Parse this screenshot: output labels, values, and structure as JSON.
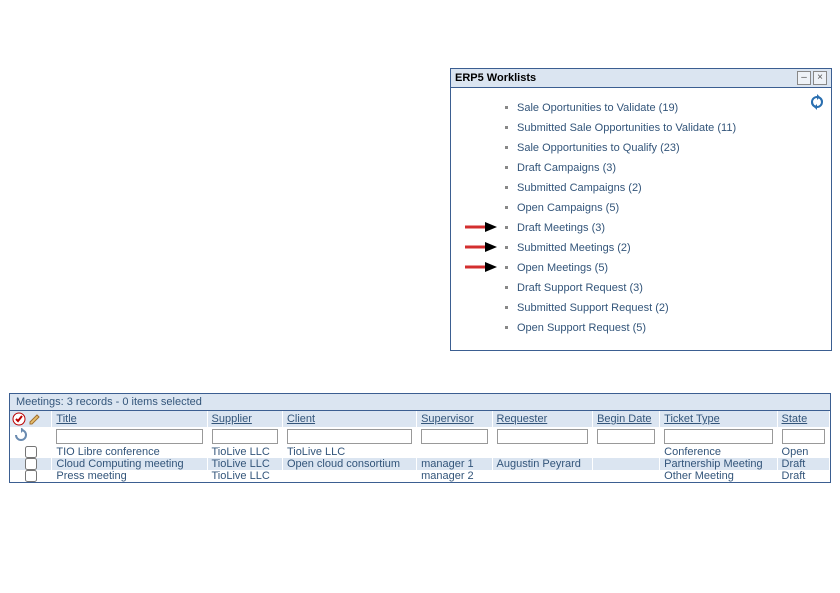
{
  "worklists": {
    "title": "ERP5 Worklists",
    "highlight_indices": [
      6,
      7,
      8
    ],
    "items": [
      {
        "label": "Sale Oportunities to Validate (19)"
      },
      {
        "label": "Submitted Sale Opportunities to Validate (11)"
      },
      {
        "label": "Sale Opportunities to Qualify (23)"
      },
      {
        "label": "Draft Campaigns (3)"
      },
      {
        "label": "Submitted Campaigns (2)"
      },
      {
        "label": "Open Campaigns (5)"
      },
      {
        "label": "Draft Meetings (3)"
      },
      {
        "label": "Submitted Meetings (2)"
      },
      {
        "label": "Open Meetings (5)"
      },
      {
        "label": "Draft Support Request (3)"
      },
      {
        "label": "Submitted Support Request (2)"
      },
      {
        "label": "Open Support Request (5)"
      }
    ]
  },
  "meetings": {
    "summary": "Meetings: 3 records - 0 items selected",
    "columns": {
      "title": "Title",
      "supplier": "Supplier",
      "client": "Client",
      "supervisor": "Supervisor",
      "requester": "Requester",
      "begin": "Begin Date",
      "ticket": "Ticket Type",
      "state": "State"
    },
    "rows": [
      {
        "title": "TIO Libre conference",
        "supplier": "TioLive LLC",
        "client": "TioLive LLC",
        "supervisor": "",
        "requester": "",
        "begin": "",
        "ticket": "Conference",
        "state": "Open"
      },
      {
        "title": "Cloud Computing meeting",
        "supplier": "TioLive LLC",
        "client": "Open cloud consortium",
        "supervisor": "manager 1",
        "requester": "Augustin Peyrard",
        "begin": "",
        "ticket": "Partnership Meeting",
        "state": "Draft"
      },
      {
        "title": "Press meeting",
        "supplier": "TioLive LLC",
        "client": "",
        "supervisor": "manager 2",
        "requester": "",
        "begin": "",
        "ticket": "Other Meeting",
        "state": "Draft"
      }
    ]
  },
  "colors": {
    "panel_border": "#3b5e91",
    "header_bg": "#dbe5f1",
    "link_text": "#33557a",
    "row_alt": "#dbe5f1",
    "arrow_red": "#d32f2f"
  }
}
